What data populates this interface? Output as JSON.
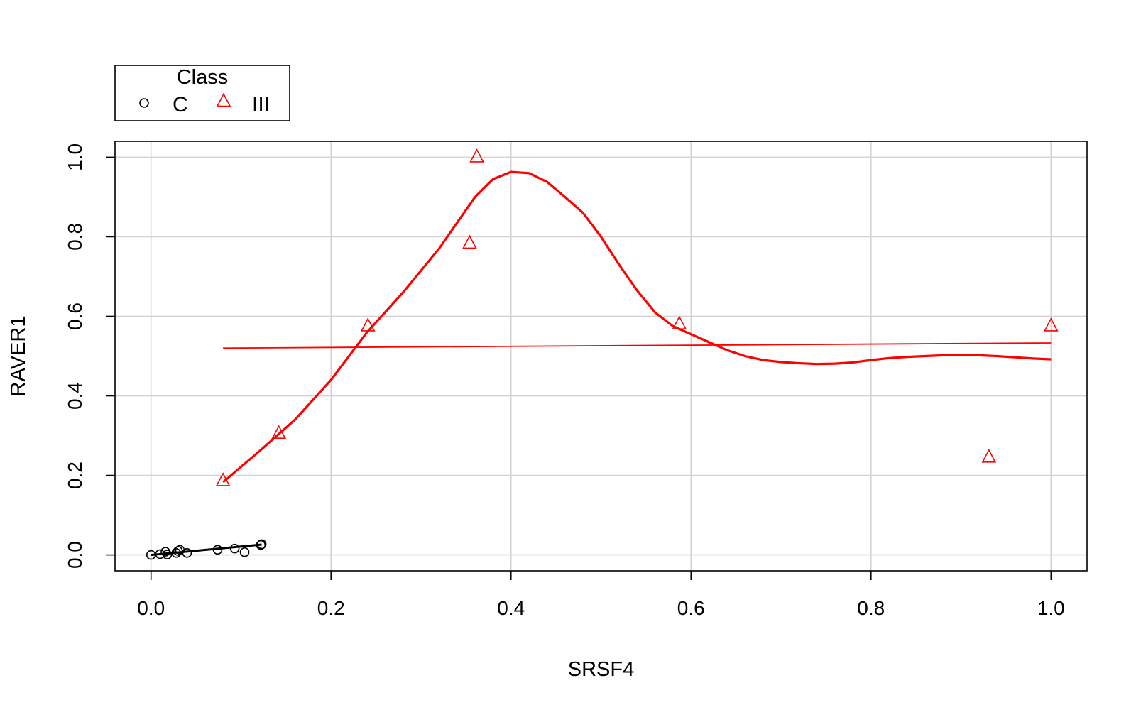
{
  "chart_data": {
    "type": "scatter",
    "xlabel": "SRSF4",
    "ylabel": "RAVER1",
    "xlim": [
      -0.04,
      1.04
    ],
    "ylim": [
      -0.04,
      1.04
    ],
    "x_ticks": [
      "0.0",
      "0.2",
      "0.4",
      "0.6",
      "0.8",
      "1.0"
    ],
    "y_ticks": [
      "0.0",
      "0.2",
      "0.4",
      "0.6",
      "0.8",
      "1.0"
    ],
    "grid": true,
    "legend": {
      "title": "Class",
      "position": "top-left, outside plot",
      "entries": [
        {
          "label": "C",
          "marker": "circle",
          "color": "#000000"
        },
        {
          "label": "III",
          "marker": "triangle",
          "color": "#ff0000"
        }
      ]
    },
    "series": [
      {
        "name": "C",
        "marker": "circle",
        "color": "#000000",
        "points": [
          [
            0.0,
            0.0
          ],
          [
            0.01,
            0.002
          ],
          [
            0.016,
            0.008
          ],
          [
            0.018,
            0.001
          ],
          [
            0.028,
            0.005
          ],
          [
            0.03,
            0.01
          ],
          [
            0.032,
            0.013
          ],
          [
            0.04,
            0.005
          ],
          [
            0.074,
            0.013
          ],
          [
            0.093,
            0.016
          ],
          [
            0.104,
            0.007
          ],
          [
            0.122,
            0.025
          ],
          [
            0.123,
            0.027
          ]
        ],
        "trend_line": [
          [
            0.0,
            0.0
          ],
          [
            0.123,
            0.026
          ]
        ]
      },
      {
        "name": "III",
        "marker": "triangle",
        "color": "#ff0000",
        "points": [
          [
            0.08,
            0.186
          ],
          [
            0.142,
            0.305
          ],
          [
            0.241,
            0.575
          ],
          [
            0.354,
            0.783
          ],
          [
            0.362,
            1.0
          ],
          [
            0.587,
            0.58
          ],
          [
            0.931,
            0.245
          ],
          [
            1.0,
            0.575
          ]
        ],
        "smooth_curve": [
          [
            0.08,
            0.183
          ],
          [
            0.12,
            0.26
          ],
          [
            0.16,
            0.34
          ],
          [
            0.2,
            0.44
          ],
          [
            0.24,
            0.56
          ],
          [
            0.28,
            0.66
          ],
          [
            0.32,
            0.77
          ],
          [
            0.36,
            0.9
          ],
          [
            0.38,
            0.945
          ],
          [
            0.4,
            0.963
          ],
          [
            0.42,
            0.96
          ],
          [
            0.44,
            0.938
          ],
          [
            0.46,
            0.9
          ],
          [
            0.48,
            0.86
          ],
          [
            0.5,
            0.8
          ],
          [
            0.52,
            0.73
          ],
          [
            0.54,
            0.665
          ],
          [
            0.56,
            0.61
          ],
          [
            0.58,
            0.575
          ],
          [
            0.6,
            0.555
          ],
          [
            0.62,
            0.535
          ],
          [
            0.64,
            0.515
          ],
          [
            0.66,
            0.5
          ],
          [
            0.68,
            0.49
          ],
          [
            0.7,
            0.485
          ],
          [
            0.72,
            0.482
          ],
          [
            0.74,
            0.48
          ],
          [
            0.76,
            0.481
          ],
          [
            0.78,
            0.484
          ],
          [
            0.8,
            0.49
          ],
          [
            0.82,
            0.495
          ],
          [
            0.84,
            0.498
          ],
          [
            0.86,
            0.5
          ],
          [
            0.88,
            0.502
          ],
          [
            0.9,
            0.503
          ],
          [
            0.92,
            0.502
          ],
          [
            0.94,
            0.5
          ],
          [
            0.96,
            0.497
          ],
          [
            0.98,
            0.494
          ],
          [
            1.0,
            0.492
          ]
        ],
        "trend_line": [
          [
            0.08,
            0.52
          ],
          [
            1.0,
            0.533
          ]
        ]
      }
    ]
  }
}
